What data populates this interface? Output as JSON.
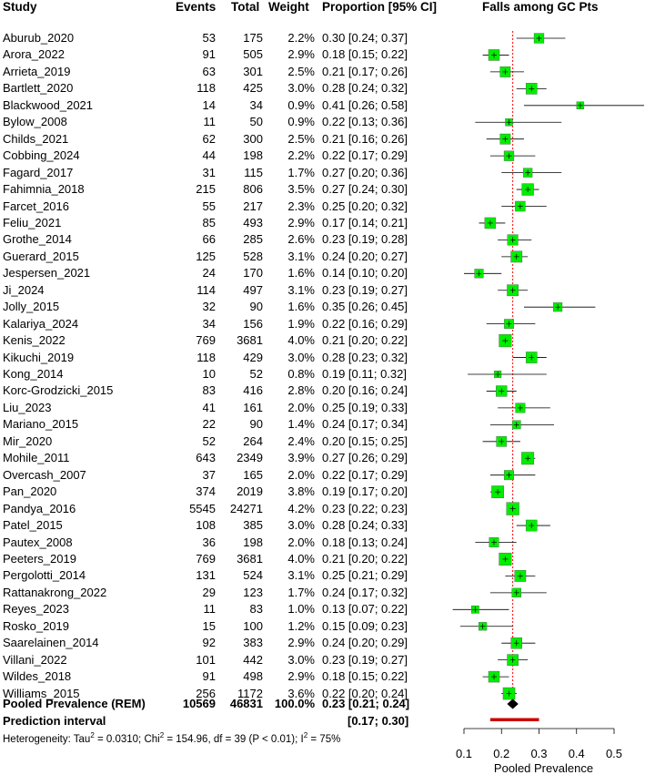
{
  "columns": {
    "study": "Study",
    "events": "Events",
    "total": "Total",
    "weight": "Weight",
    "proportion": "Proportion [95% CI]",
    "plot_title": "Falls among GC Pts"
  },
  "pooled": {
    "label": "Pooled Prevalence  (REM)",
    "events": "10569",
    "total": "46831",
    "weight": "100.0%",
    "ci_text": "0.23 [0.21; 0.24]"
  },
  "prediction": {
    "label": "Prediction interval",
    "ci_text": "[0.17; 0.30]"
  },
  "heterogeneity": {
    "prefix": "Heterogeneity: Tau",
    "tau_value": " = 0.0310; Chi",
    "chi_value": " = 154.96, df = 39 (P < 0.01); I",
    "i2_value": " = 75%",
    "sup": "2"
  },
  "chart_data": {
    "type": "forest",
    "title": "Falls among GC Pts",
    "xlabel": "Pooled Prevalence",
    "xlim": [
      0.1,
      0.5
    ],
    "xticks": [
      0.1,
      0.2,
      0.3,
      0.4,
      0.5
    ],
    "xtick_labels": [
      "0.1",
      "0.2",
      "0.3",
      "0.4",
      "0.5"
    ],
    "colors": {
      "box": "#00ee00",
      "diamond": "#000000",
      "prediction": "#cc0000",
      "reference": "#ff0000"
    },
    "pooled": {
      "est": 0.23,
      "lo": 0.21,
      "hi": 0.24
    },
    "prediction_interval": {
      "lo": 0.17,
      "hi": 0.3
    },
    "studies": [
      {
        "name": "Aburub_2020",
        "events": "53",
        "total": "175",
        "weight": "2.2%",
        "ci_text": "0.30 [0.24; 0.37]",
        "est": 0.3,
        "lo": 0.24,
        "hi": 0.37,
        "w": 2.2
      },
      {
        "name": "Arora_2022",
        "events": "91",
        "total": "505",
        "weight": "2.9%",
        "ci_text": "0.18 [0.15; 0.22]",
        "est": 0.18,
        "lo": 0.15,
        "hi": 0.22,
        "w": 2.9
      },
      {
        "name": "Arrieta_2019",
        "events": "63",
        "total": "301",
        "weight": "2.5%",
        "ci_text": "0.21 [0.17; 0.26]",
        "est": 0.21,
        "lo": 0.17,
        "hi": 0.26,
        "w": 2.5
      },
      {
        "name": "Bartlett_2020",
        "events": "118",
        "total": "425",
        "weight": "3.0%",
        "ci_text": "0.28 [0.24; 0.32]",
        "est": 0.28,
        "lo": 0.24,
        "hi": 0.32,
        "w": 3.0
      },
      {
        "name": "Blackwood_2021",
        "events": "14",
        "total": "34",
        "weight": "0.9%",
        "ci_text": "0.41 [0.26; 0.58]",
        "est": 0.41,
        "lo": 0.26,
        "hi": 0.58,
        "w": 0.9
      },
      {
        "name": "Bylow_2008",
        "events": "11",
        "total": "50",
        "weight": "0.9%",
        "ci_text": "0.22 [0.13; 0.36]",
        "est": 0.22,
        "lo": 0.13,
        "hi": 0.36,
        "w": 0.9
      },
      {
        "name": "Childs_2021",
        "events": "62",
        "total": "300",
        "weight": "2.5%",
        "ci_text": "0.21 [0.16; 0.26]",
        "est": 0.21,
        "lo": 0.16,
        "hi": 0.26,
        "w": 2.5
      },
      {
        "name": "Cobbing_2024",
        "events": "44",
        "total": "198",
        "weight": "2.2%",
        "ci_text": "0.22 [0.17; 0.29]",
        "est": 0.22,
        "lo": 0.17,
        "hi": 0.29,
        "w": 2.2
      },
      {
        "name": "Fagard_2017",
        "events": "31",
        "total": "115",
        "weight": "1.7%",
        "ci_text": "0.27 [0.20; 0.36]",
        "est": 0.27,
        "lo": 0.2,
        "hi": 0.36,
        "w": 1.7
      },
      {
        "name": "Fahimnia_2018",
        "events": "215",
        "total": "806",
        "weight": "3.5%",
        "ci_text": "0.27 [0.24; 0.30]",
        "est": 0.27,
        "lo": 0.24,
        "hi": 0.3,
        "w": 3.5
      },
      {
        "name": "Farcet_2016",
        "events": "55",
        "total": "217",
        "weight": "2.3%",
        "ci_text": "0.25 [0.20; 0.32]",
        "est": 0.25,
        "lo": 0.2,
        "hi": 0.32,
        "w": 2.3
      },
      {
        "name": "Feliu_2021",
        "events": "85",
        "total": "493",
        "weight": "2.9%",
        "ci_text": "0.17 [0.14; 0.21]",
        "est": 0.17,
        "lo": 0.14,
        "hi": 0.21,
        "w": 2.9
      },
      {
        "name": "Grothe_2014",
        "events": "66",
        "total": "285",
        "weight": "2.6%",
        "ci_text": "0.23 [0.19; 0.28]",
        "est": 0.23,
        "lo": 0.19,
        "hi": 0.28,
        "w": 2.6
      },
      {
        "name": "Guerard_2015",
        "events": "125",
        "total": "528",
        "weight": "3.1%",
        "ci_text": "0.24 [0.20; 0.27]",
        "est": 0.24,
        "lo": 0.2,
        "hi": 0.27,
        "w": 3.1
      },
      {
        "name": "Jespersen_2021",
        "events": "24",
        "total": "170",
        "weight": "1.6%",
        "ci_text": "0.14 [0.10; 0.20]",
        "est": 0.14,
        "lo": 0.1,
        "hi": 0.2,
        "w": 1.6
      },
      {
        "name": "Ji_2024",
        "events": "114",
        "total": "497",
        "weight": "3.1%",
        "ci_text": "0.23 [0.19; 0.27]",
        "est": 0.23,
        "lo": 0.19,
        "hi": 0.27,
        "w": 3.1
      },
      {
        "name": "Jolly_2015",
        "events": "32",
        "total": "90",
        "weight": "1.6%",
        "ci_text": "0.35 [0.26; 0.45]",
        "est": 0.35,
        "lo": 0.26,
        "hi": 0.45,
        "w": 1.6
      },
      {
        "name": "Kalariya_2024",
        "events": "34",
        "total": "156",
        "weight": "1.9%",
        "ci_text": "0.22 [0.16; 0.29]",
        "est": 0.22,
        "lo": 0.16,
        "hi": 0.29,
        "w": 1.9
      },
      {
        "name": "Kenis_2022",
        "events": "769",
        "total": "3681",
        "weight": "4.0%",
        "ci_text": "0.21 [0.20; 0.22]",
        "est": 0.21,
        "lo": 0.2,
        "hi": 0.22,
        "w": 4.0
      },
      {
        "name": "Kikuchi_2019",
        "events": "118",
        "total": "429",
        "weight": "3.0%",
        "ci_text": "0.28 [0.23; 0.32]",
        "est": 0.28,
        "lo": 0.23,
        "hi": 0.32,
        "w": 3.0
      },
      {
        "name": "Kong_2014",
        "events": "10",
        "total": "52",
        "weight": "0.8%",
        "ci_text": "0.19 [0.11; 0.32]",
        "est": 0.19,
        "lo": 0.11,
        "hi": 0.32,
        "w": 0.8
      },
      {
        "name": "Korc-Grodzicki_2015",
        "events": "83",
        "total": "416",
        "weight": "2.8%",
        "ci_text": "0.20 [0.16; 0.24]",
        "est": 0.2,
        "lo": 0.16,
        "hi": 0.24,
        "w": 2.8
      },
      {
        "name": "Liu_2023",
        "events": "41",
        "total": "161",
        "weight": "2.0%",
        "ci_text": "0.25 [0.19; 0.33]",
        "est": 0.25,
        "lo": 0.19,
        "hi": 0.33,
        "w": 2.0
      },
      {
        "name": "Mariano_2015",
        "events": "22",
        "total": "90",
        "weight": "1.4%",
        "ci_text": "0.24 [0.17; 0.34]",
        "est": 0.24,
        "lo": 0.17,
        "hi": 0.34,
        "w": 1.4
      },
      {
        "name": "Mir_2020",
        "events": "52",
        "total": "264",
        "weight": "2.4%",
        "ci_text": "0.20 [0.15; 0.25]",
        "est": 0.2,
        "lo": 0.15,
        "hi": 0.25,
        "w": 2.4
      },
      {
        "name": "Mohile_2011",
        "events": "643",
        "total": "2349",
        "weight": "3.9%",
        "ci_text": "0.27 [0.26; 0.29]",
        "est": 0.27,
        "lo": 0.26,
        "hi": 0.29,
        "w": 3.9
      },
      {
        "name": "Overcash_2007",
        "events": "37",
        "total": "165",
        "weight": "2.0%",
        "ci_text": "0.22 [0.17; 0.29]",
        "est": 0.22,
        "lo": 0.17,
        "hi": 0.29,
        "w": 2.0
      },
      {
        "name": "Pan_2020",
        "events": "374",
        "total": "2019",
        "weight": "3.8%",
        "ci_text": "0.19 [0.17; 0.20]",
        "est": 0.19,
        "lo": 0.17,
        "hi": 0.2,
        "w": 3.8
      },
      {
        "name": "Pandya_2016",
        "events": "5545",
        "total": "24271",
        "weight": "4.2%",
        "ci_text": "0.23 [0.22; 0.23]",
        "est": 0.23,
        "lo": 0.22,
        "hi": 0.23,
        "w": 4.2
      },
      {
        "name": "Patel_2015",
        "events": "108",
        "total": "385",
        "weight": "3.0%",
        "ci_text": "0.28 [0.24; 0.33]",
        "est": 0.28,
        "lo": 0.24,
        "hi": 0.33,
        "w": 3.0
      },
      {
        "name": "Pautex_2008",
        "events": "36",
        "total": "198",
        "weight": "2.0%",
        "ci_text": "0.18 [0.13; 0.24]",
        "est": 0.18,
        "lo": 0.13,
        "hi": 0.24,
        "w": 2.0
      },
      {
        "name": "Peeters_2019",
        "events": "769",
        "total": "3681",
        "weight": "4.0%",
        "ci_text": "0.21 [0.20; 0.22]",
        "est": 0.21,
        "lo": 0.2,
        "hi": 0.22,
        "w": 4.0
      },
      {
        "name": "Pergolotti_2014",
        "events": "131",
        "total": "524",
        "weight": "3.1%",
        "ci_text": "0.25 [0.21; 0.29]",
        "est": 0.25,
        "lo": 0.21,
        "hi": 0.29,
        "w": 3.1
      },
      {
        "name": "Rattanakrong_2022",
        "events": "29",
        "total": "123",
        "weight": "1.7%",
        "ci_text": "0.24 [0.17; 0.32]",
        "est": 0.24,
        "lo": 0.17,
        "hi": 0.32,
        "w": 1.7
      },
      {
        "name": "Reyes_2023",
        "events": "11",
        "total": "83",
        "weight": "1.0%",
        "ci_text": "0.13 [0.07; 0.22]",
        "est": 0.13,
        "lo": 0.07,
        "hi": 0.22,
        "w": 1.0
      },
      {
        "name": "Rosko_2019",
        "events": "15",
        "total": "100",
        "weight": "1.2%",
        "ci_text": "0.15 [0.09; 0.23]",
        "est": 0.15,
        "lo": 0.09,
        "hi": 0.23,
        "w": 1.2
      },
      {
        "name": "Saarelainen_2014",
        "events": "92",
        "total": "383",
        "weight": "2.9%",
        "ci_text": "0.24 [0.20; 0.29]",
        "est": 0.24,
        "lo": 0.2,
        "hi": 0.29,
        "w": 2.9
      },
      {
        "name": "Villani_2022",
        "events": "101",
        "total": "442",
        "weight": "3.0%",
        "ci_text": "0.23 [0.19; 0.27]",
        "est": 0.23,
        "lo": 0.19,
        "hi": 0.27,
        "w": 3.0
      },
      {
        "name": "Wildes_2018",
        "events": "91",
        "total": "498",
        "weight": "2.9%",
        "ci_text": "0.18 [0.15; 0.22]",
        "est": 0.18,
        "lo": 0.15,
        "hi": 0.22,
        "w": 2.9
      },
      {
        "name": "Williams_2015",
        "events": "256",
        "total": "1172",
        "weight": "3.6%",
        "ci_text": "0.22 [0.20; 0.24]",
        "est": 0.22,
        "lo": 0.2,
        "hi": 0.24,
        "w": 3.6
      }
    ]
  }
}
